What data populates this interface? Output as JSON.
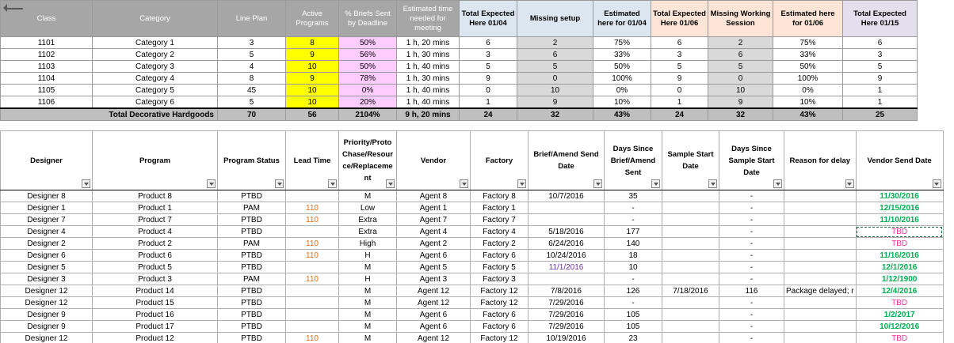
{
  "summary": {
    "headers": [
      "Class",
      "Category",
      "Line Plan",
      "Active Programs",
      "% Briefs Sent by Deadline",
      "Estimated time needed for meeting",
      "Total Expected Here 01/04",
      "Missing setup",
      "Estimated here for 01/04",
      "Total Expected Here 01/06",
      "Missing Working Session",
      "Estimated here for 01/06",
      "Total Expected Here 01/15"
    ],
    "rows": [
      [
        "1101",
        "Category 1",
        "3",
        "8",
        "50%",
        "1 h, 20 mins",
        "6",
        "2",
        "75%",
        "6",
        "2",
        "75%",
        "6"
      ],
      [
        "1102",
        "Category 2",
        "5",
        "9",
        "56%",
        "1 h, 30 mins",
        "3",
        "6",
        "33%",
        "3",
        "6",
        "33%",
        "3"
      ],
      [
        "1103",
        "Category 3",
        "4",
        "10",
        "50%",
        "1 h, 40 mins",
        "5",
        "5",
        "50%",
        "5",
        "5",
        "50%",
        "5"
      ],
      [
        "1104",
        "Category 4",
        "8",
        "9",
        "78%",
        "1 h, 30 mins",
        "9",
        "0",
        "100%",
        "9",
        "0",
        "100%",
        "9"
      ],
      [
        "1105",
        "Category 5",
        "45",
        "10",
        "0%",
        "1 h, 40 mins",
        "0",
        "10",
        "0%",
        "0",
        "10",
        "0%",
        "1"
      ],
      [
        "1106",
        "Category 6",
        "5",
        "10",
        "20%",
        "1 h, 40 mins",
        "1",
        "9",
        "10%",
        "1",
        "9",
        "10%",
        "1"
      ]
    ],
    "total": [
      "Total Decorative Hardgoods",
      "70",
      "56",
      "2104%",
      "9 h, 20 mins",
      "24",
      "32",
      "43%",
      "24",
      "32",
      "43%",
      "25"
    ]
  },
  "detail": {
    "headers": [
      "Designer",
      "Program",
      "Program Status",
      "Lead Time",
      "Priority/Proto Chase/Resour ce/Replaceme nt",
      "Vendor",
      "Factory",
      "Brief/Amend Send Date",
      "Days Since Brief/Amend Sent",
      "Sample Start Date",
      "Days Since Sample Start Date",
      "Reason for delay",
      "Vendor Send Date"
    ],
    "rows": [
      [
        "Designer 8",
        "Product 8",
        "PTBD",
        "",
        "M",
        "Agent 8",
        "Factory 8",
        "10/7/2016",
        "35",
        "",
        "-",
        "",
        "11/30/2016"
      ],
      [
        "Designer 1",
        "Product 1",
        "PAM",
        "110",
        "Low",
        "Agent 1",
        "Factory 1",
        "",
        "-",
        "",
        "-",
        "",
        "12/15/2016"
      ],
      [
        "Designer 7",
        "Product 7",
        "PTBD",
        "110",
        "Extra",
        "Agent 7",
        "Factory 7",
        "",
        "-",
        "",
        "-",
        "",
        "11/10/2016"
      ],
      [
        "Designer 4",
        "Product 4",
        "PTBD",
        "",
        "Extra",
        "Agent 4",
        "Factory 4",
        "5/18/2016",
        "177",
        "",
        "-",
        "",
        "TBD"
      ],
      [
        "Designer 2",
        "Product 2",
        "PAM",
        "110",
        "High",
        "Agent 2",
        "Factory 2",
        "6/24/2016",
        "140",
        "",
        "-",
        "",
        "TBD"
      ],
      [
        "Designer 6",
        "Product 6",
        "PTBD",
        "110",
        "H",
        "Agent 6",
        "Factory 6",
        "10/24/2016",
        "18",
        "",
        "-",
        "",
        "11/16/2016"
      ],
      [
        "Designer 5",
        "Product 5",
        "PTBD",
        "",
        "M",
        "Agent 5",
        "Factory 5",
        "11/1/2016",
        "10",
        "",
        "-",
        "",
        "12/1/2016"
      ],
      [
        "Designer 3",
        "Product 3",
        "PAM",
        "110",
        "H",
        "Agent 3",
        "Factory 3",
        "",
        "-",
        "",
        "-",
        "",
        "1/12/1900"
      ],
      [
        "Designer 12",
        "Product 14",
        "PTBD",
        "",
        "M",
        "Agent 12",
        "Factory 12",
        "7/8/2016",
        "126",
        "7/18/2016",
        "116",
        "Package delayed; r",
        "12/4/2016"
      ],
      [
        "Designer 12",
        "Product 15",
        "PTBD",
        "",
        "M",
        "Agent 12",
        "Factory 12",
        "7/29/2016",
        "-",
        "",
        "-",
        "",
        "TBD"
      ],
      [
        "Designer 9",
        "Product 16",
        "PTBD",
        "",
        "M",
        "Agent 6",
        "Factory 6",
        "7/29/2016",
        "105",
        "",
        "-",
        "",
        "1/2/2017"
      ],
      [
        "Designer 9",
        "Product 17",
        "PTBD",
        "",
        "M",
        "Agent 6",
        "Factory 6",
        "7/29/2016",
        "105",
        "",
        "-",
        "",
        "10/12/2016"
      ],
      [
        "Designer 12",
        "Product 12",
        "PTBD",
        "110",
        "M",
        "Agent 12",
        "Factory 12",
        "10/19/2016",
        "23",
        "",
        "-",
        "",
        "TBD"
      ]
    ]
  },
  "colors": {
    "header_gray": "#a6a6a6",
    "header_blue": "#dce6f1",
    "header_orange": "#fce4d6",
    "header_purple": "#e4dfec",
    "active_yellow": "#ffff00",
    "briefs_pink": "#ffccff",
    "missing_gray": "#d9d9d9",
    "lead_orange": "#e26b0a",
    "date_green": "#00b050",
    "tbd_pink": "#ff3399",
    "date_purple": "#7030a0"
  },
  "icons": [
    "filter-dropdown-icon",
    "collapse-arrow-icon"
  ]
}
